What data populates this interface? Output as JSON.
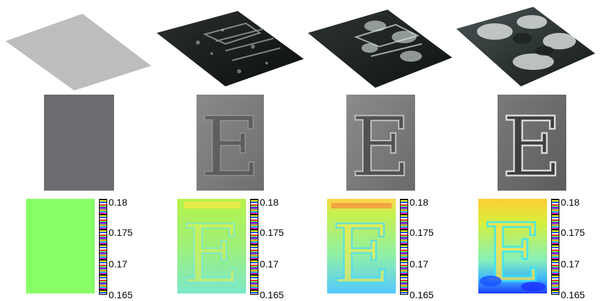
{
  "figure": {
    "columns": 4,
    "rows": [
      "3d-surface",
      "grayscale-image",
      "colormap-image"
    ],
    "panel_letter": "E"
  },
  "colorbar": {
    "ticks": [
      "0.18",
      "0.175",
      "0.17",
      "0.165"
    ]
  },
  "colors": {
    "flat_surface": "#bdbdbd",
    "flat_image": "#6b6c70",
    "flat_map": "#88ff66"
  }
}
